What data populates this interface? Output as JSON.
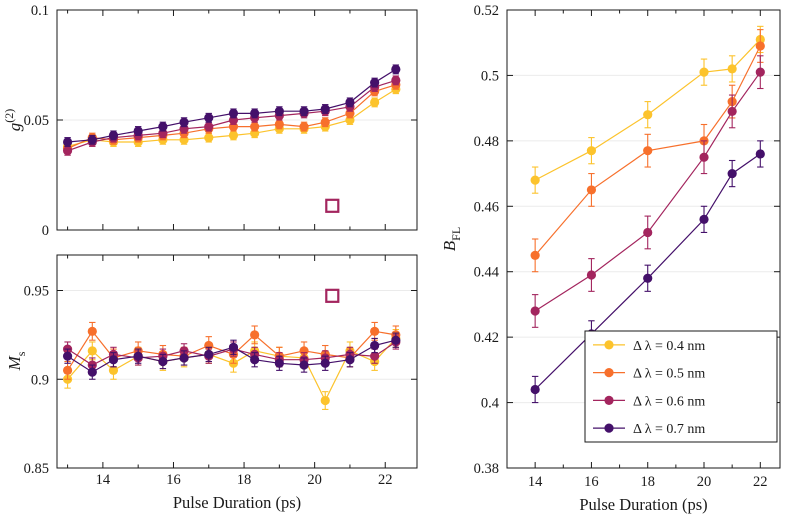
{
  "figure": {
    "background": "#ffffff",
    "axis_color": "#1a1a1a",
    "grid_color": "#ebebeb",
    "x_ticks": [
      14,
      16,
      18,
      20,
      22
    ],
    "x_tick_labels": [
      "14",
      "16",
      "18",
      "20",
      "22"
    ],
    "xlabel": "Pulse Duration (ps)"
  },
  "legend": {
    "items": [
      {
        "label": "Δ λ = 0.4 nm",
        "color": "#FCC32C"
      },
      {
        "label": "Δ λ = 0.5 nm",
        "color": "#F7702C"
      },
      {
        "label": "Δ λ = 0.6 nm",
        "color": "#A3255E"
      },
      {
        "label": "Δ λ = 0.7 nm",
        "color": "#44106A"
      }
    ]
  },
  "chart_data": [
    {
      "id": "g2",
      "type": "line",
      "title": "",
      "ylabel": {
        "base": "g",
        "sup": "(2)"
      },
      "ylim": [
        0,
        0.1
      ],
      "y_ticks": [
        0,
        0.05,
        0.1
      ],
      "y_tick_labels": [
        "0",
        "0.05",
        "0.1"
      ],
      "xlim": [
        12.7,
        22.9
      ],
      "xlabel": "",
      "show_x_tick_labels": false,
      "legend": false,
      "x": [
        13.0,
        13.7,
        14.3,
        15.0,
        15.7,
        16.3,
        17.0,
        17.7,
        18.3,
        19.0,
        19.7,
        20.3,
        21.0,
        21.7,
        22.3
      ],
      "series": [
        {
          "name": "Δ λ = 0.4 nm",
          "color": "#FCC32C",
          "err": 0.002,
          "values": [
            0.038,
            0.041,
            0.04,
            0.04,
            0.041,
            0.041,
            0.042,
            0.043,
            0.044,
            0.046,
            0.046,
            0.047,
            0.05,
            0.058,
            0.064
          ]
        },
        {
          "name": "Δ λ = 0.5 nm",
          "color": "#F7702C",
          "err": 0.002,
          "values": [
            0.037,
            0.042,
            0.041,
            0.042,
            0.043,
            0.044,
            0.046,
            0.047,
            0.047,
            0.048,
            0.047,
            0.049,
            0.053,
            0.063,
            0.066
          ]
        },
        {
          "name": "Δ λ = 0.6 nm",
          "color": "#A3255E",
          "err": 0.002,
          "values": [
            0.036,
            0.04,
            0.042,
            0.043,
            0.044,
            0.046,
            0.047,
            0.05,
            0.051,
            0.052,
            0.053,
            0.054,
            0.056,
            0.065,
            0.068
          ]
        },
        {
          "name": "Δ λ = 0.7 nm",
          "color": "#44106A",
          "err": 0.002,
          "values": [
            0.04,
            0.041,
            0.043,
            0.045,
            0.047,
            0.049,
            0.051,
            0.053,
            0.053,
            0.054,
            0.054,
            0.055,
            0.058,
            0.067,
            0.073
          ]
        }
      ],
      "open_square": {
        "x": 20.5,
        "y": 0.011,
        "color": "#A3255E"
      }
    },
    {
      "id": "ms",
      "type": "line",
      "title": "",
      "ylabel": {
        "base": "M",
        "sub": "s"
      },
      "ylim": [
        0.85,
        0.97
      ],
      "y_ticks": [
        0.85,
        0.9,
        0.95
      ],
      "y_tick_labels": [
        "0.85",
        "0.9",
        "0.95"
      ],
      "xlim": [
        12.7,
        22.9
      ],
      "xlabel": "Pulse Duration (ps)",
      "show_x_tick_labels": true,
      "legend": false,
      "x": [
        13.0,
        13.7,
        14.3,
        15.0,
        15.7,
        16.3,
        17.0,
        17.7,
        18.3,
        19.0,
        19.7,
        20.3,
        21.0,
        21.7,
        22.3
      ],
      "series": [
        {
          "name": "Δ λ = 0.4 nm",
          "color": "#FCC32C",
          "err": 0.005,
          "values": [
            0.9,
            0.916,
            0.905,
            0.913,
            0.91,
            0.912,
            0.914,
            0.909,
            0.916,
            0.913,
            0.912,
            0.888,
            0.916,
            0.91,
            0.923
          ]
        },
        {
          "name": "Δ λ = 0.5 nm",
          "color": "#F7702C",
          "err": 0.005,
          "values": [
            0.905,
            0.927,
            0.912,
            0.916,
            0.914,
            0.913,
            0.919,
            0.914,
            0.925,
            0.913,
            0.916,
            0.914,
            0.912,
            0.927,
            0.925
          ]
        },
        {
          "name": "Δ λ = 0.6 nm",
          "color": "#A3255E",
          "err": 0.004,
          "values": [
            0.917,
            0.908,
            0.914,
            0.912,
            0.913,
            0.916,
            0.913,
            0.917,
            0.914,
            0.911,
            0.911,
            0.912,
            0.914,
            0.913,
            0.921
          ]
        },
        {
          "name": "Δ λ = 0.7 nm",
          "color": "#44106A",
          "err": 0.004,
          "values": [
            0.913,
            0.904,
            0.911,
            0.913,
            0.91,
            0.912,
            0.914,
            0.918,
            0.911,
            0.909,
            0.908,
            0.909,
            0.911,
            0.919,
            0.922
          ]
        }
      ],
      "open_square": {
        "x": 20.5,
        "y": 0.947,
        "color": "#A3255E"
      }
    },
    {
      "id": "bfl",
      "type": "line",
      "title": "",
      "ylabel": {
        "base": "B",
        "sub": "FL"
      },
      "ylim": [
        0.38,
        0.52
      ],
      "y_ticks": [
        0.38,
        0.4,
        0.42,
        0.44,
        0.46,
        0.48,
        0.5,
        0.52
      ],
      "y_tick_labels": [
        "0.38",
        "0.4",
        "0.42",
        "0.44",
        "0.46",
        "0.48",
        "0.5",
        "0.52"
      ],
      "xlim": [
        13.0,
        22.7
      ],
      "xlabel": "Pulse Duration (ps)",
      "show_x_tick_labels": true,
      "legend": true,
      "x": [
        14,
        16,
        18,
        20,
        21,
        22
      ],
      "series": [
        {
          "name": "Δ λ = 0.4 nm",
          "color": "#FCC32C",
          "err": 0.004,
          "values": [
            0.468,
            0.477,
            0.488,
            0.501,
            0.502,
            0.511
          ]
        },
        {
          "name": "Δ λ = 0.5 nm",
          "color": "#F7702C",
          "err": 0.005,
          "values": [
            0.445,
            0.465,
            0.477,
            0.48,
            0.492,
            0.509
          ]
        },
        {
          "name": "Δ λ = 0.6 nm",
          "color": "#A3255E",
          "err": 0.005,
          "values": [
            0.428,
            0.439,
            0.452,
            0.475,
            0.489,
            0.501
          ]
        },
        {
          "name": "Δ λ = 0.7 nm",
          "color": "#44106A",
          "err": 0.004,
          "values": [
            0.404,
            0.421,
            0.438,
            0.456,
            0.47,
            0.476
          ]
        }
      ]
    }
  ]
}
